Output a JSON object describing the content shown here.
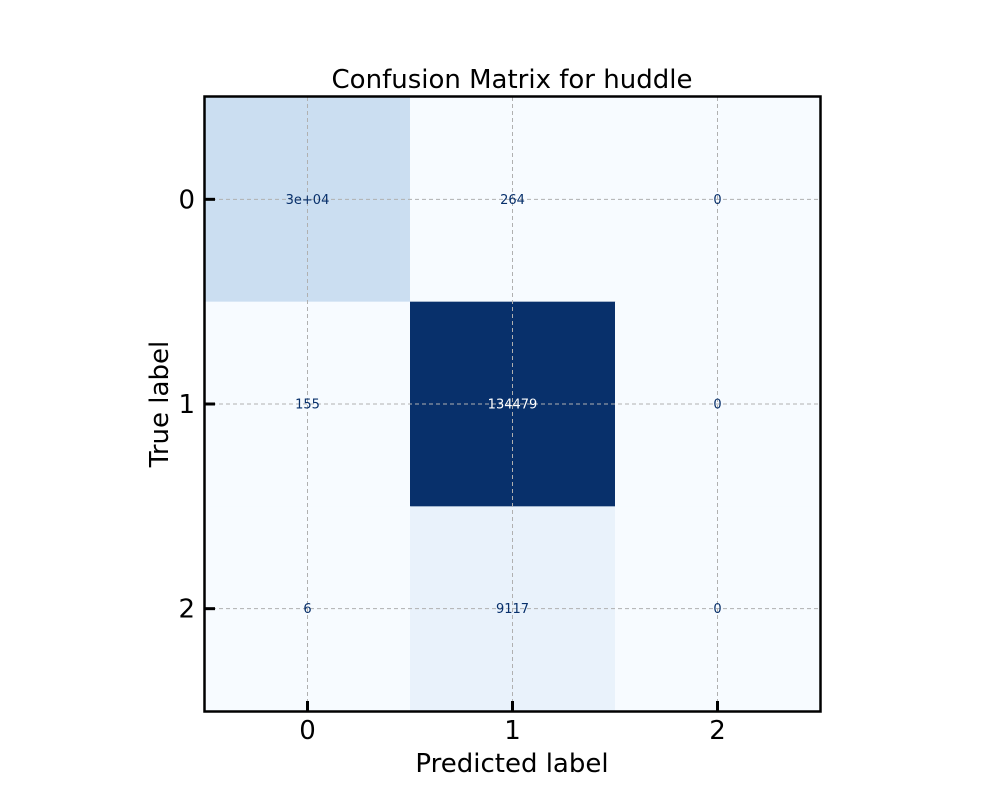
{
  "chart_data": {
    "type": "heatmap",
    "title": "Confusion Matrix for huddle",
    "xlabel": "Predicted label",
    "ylabel": "True label",
    "x_categories": [
      "0",
      "1",
      "2"
    ],
    "y_categories": [
      "0",
      "1",
      "2"
    ],
    "values": [
      [
        30000,
        264,
        0
      ],
      [
        155,
        134479,
        0
      ],
      [
        6,
        9117,
        0
      ]
    ],
    "cell_labels": [
      [
        "3e+04",
        "264",
        "0"
      ],
      [
        "155",
        "134479",
        "0"
      ],
      [
        "6",
        "9117",
        "0"
      ]
    ],
    "colormap": "Blues",
    "grid": true,
    "colors": {
      "low": "#f7fbff",
      "high": "#08306b",
      "text_dark": "#08306b",
      "text_light": "#ffffff"
    }
  }
}
